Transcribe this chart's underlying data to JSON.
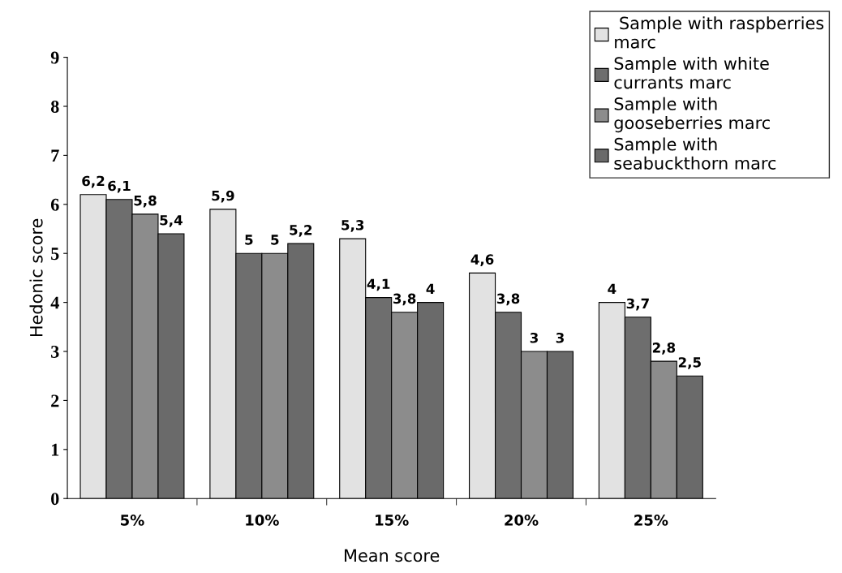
{
  "chart_data": {
    "type": "bar",
    "xlabel": "Mean score",
    "ylabel": "Hedonic score",
    "categories": [
      "5%",
      "10%",
      "15%",
      "20%",
      "25%"
    ],
    "series": [
      {
        "name": " Sample with raspberries\nmarc",
        "color": "#e2e2e2",
        "values": [
          6.2,
          5.9,
          5.3,
          4.6,
          4
        ],
        "value_labels": [
          "6,2",
          "5,9",
          "5,3",
          "4,6",
          "4"
        ]
      },
      {
        "name": "Sample with white\ncurrants marc",
        "color": "#6e6e6e",
        "values": [
          6.1,
          5,
          4.1,
          3.8,
          3.7
        ],
        "value_labels": [
          "6,1",
          "5",
          "4,1",
          "3,8",
          "3,7"
        ]
      },
      {
        "name": "Sample with\ngooseberries marc",
        "color": "#8c8c8c",
        "values": [
          5.8,
          5,
          3.8,
          3,
          2.8
        ],
        "value_labels": [
          "5,8",
          "5",
          "3,8",
          "3",
          "2,8"
        ]
      },
      {
        "name": "Sample with\nseabuckthorn marc",
        "color": "#6a6a6a",
        "values": [
          5.4,
          5.2,
          4,
          3,
          2.5
        ],
        "value_labels": [
          "5,4",
          "5,2",
          "4",
          "3",
          "2,5"
        ]
      }
    ],
    "ylim": [
      0,
      9
    ],
    "yticks": [
      0,
      1,
      2,
      3,
      4,
      5,
      6,
      7,
      8,
      9
    ],
    "grid": false,
    "legend": "top right"
  }
}
